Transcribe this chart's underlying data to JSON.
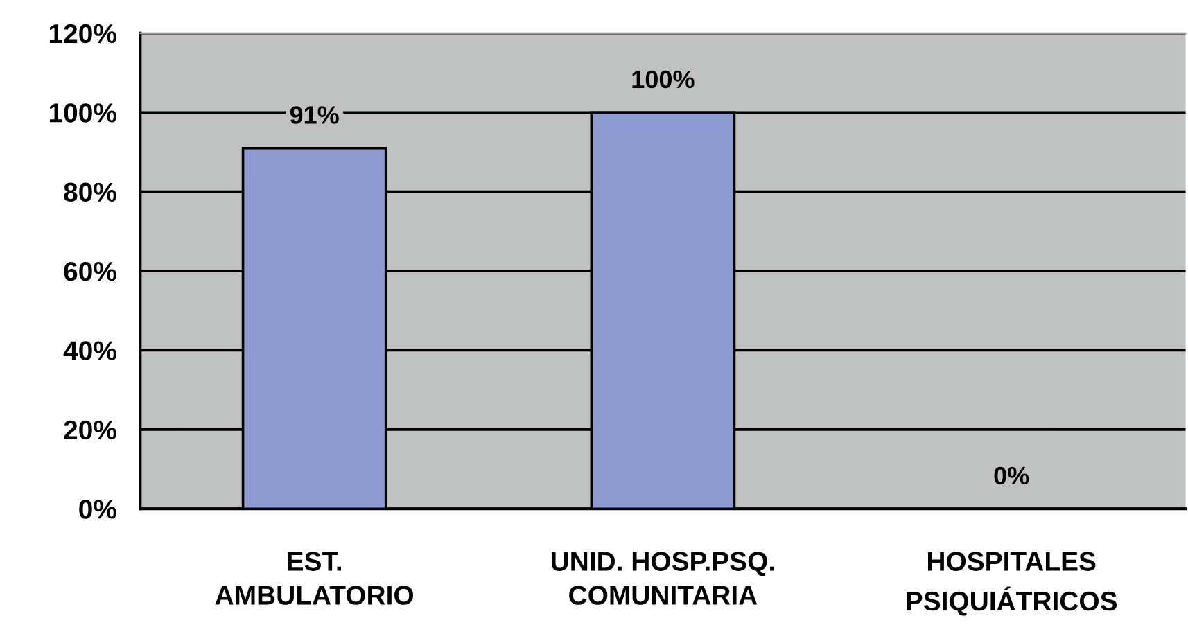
{
  "chart_data": {
    "type": "bar",
    "categories": [
      "EST.\nAMBULATORIO",
      "UNID. HOSP.PSQ.\nCOMUNITARIA",
      "HOSPITALES\nPSIQUIÁTRICOS"
    ],
    "values": [
      91,
      100,
      0
    ],
    "value_labels": [
      "91%",
      "100%",
      "0%"
    ],
    "color": "#8e9bd1",
    "ylim": [
      0,
      120
    ],
    "yticks": [
      {
        "value": 0,
        "label": "0%"
      },
      {
        "value": 20,
        "label": "20%"
      },
      {
        "value": 40,
        "label": "40%"
      },
      {
        "value": 60,
        "label": "60%"
      },
      {
        "value": 80,
        "label": "80%"
      },
      {
        "value": 100,
        "label": "100%"
      },
      {
        "value": 120,
        "label": "120%"
      }
    ],
    "grid": "y"
  }
}
